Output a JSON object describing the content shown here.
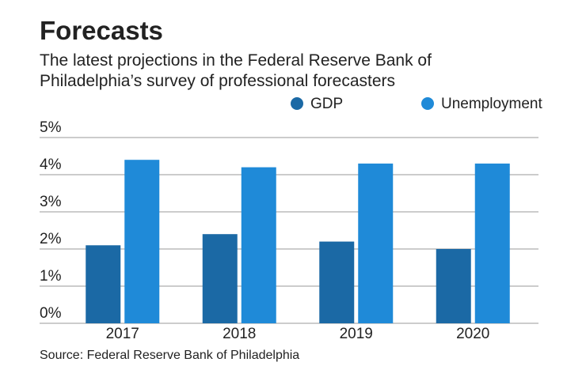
{
  "chart_data": {
    "type": "bar",
    "title": "Forecasts",
    "subtitle": "The latest projections in the Federal Reserve Bank of Philadelphia’s survey of professional forecasters",
    "source": "Source: Federal Reserve Bank of Philadelphia",
    "categories": [
      "2017",
      "2018",
      "2019",
      "2020"
    ],
    "series": [
      {
        "name": "GDP",
        "color": "#1b69a5",
        "values": [
          2.1,
          2.4,
          2.2,
          2.0
        ]
      },
      {
        "name": "Unemployment",
        "color": "#1f8ad8",
        "values": [
          4.4,
          4.2,
          4.3,
          4.3
        ]
      }
    ],
    "ylim": [
      0,
      5
    ],
    "yticks": [
      {
        "value": 0,
        "label": "0%"
      },
      {
        "value": 1,
        "label": "1%"
      },
      {
        "value": 2,
        "label": "2%"
      },
      {
        "value": 3,
        "label": "3%"
      },
      {
        "value": 4,
        "label": "4%"
      },
      {
        "value": 5,
        "label": "5%"
      }
    ],
    "grid": true
  }
}
